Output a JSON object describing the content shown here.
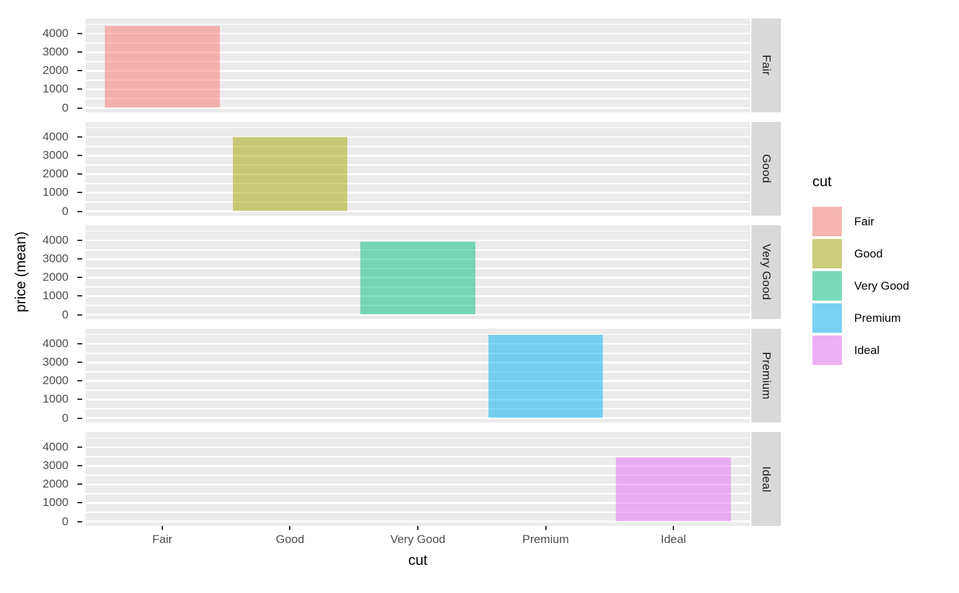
{
  "chart_data": {
    "type": "bar",
    "title": "",
    "xlabel": "cut",
    "ylabel": "price (mean)",
    "facet_variable": "cut",
    "facet_strip_position": "right",
    "grid": true,
    "legend_position": "right",
    "categories": [
      "Fair",
      "Good",
      "Very Good",
      "Premium",
      "Ideal"
    ],
    "facets": [
      {
        "strip_label": "Fair",
        "category": "Fair",
        "value": 4400
      },
      {
        "strip_label": "Good",
        "category": "Good",
        "value": 4000
      },
      {
        "strip_label": "Very Good",
        "category": "Very Good",
        "value": 3950
      },
      {
        "strip_label": "Premium",
        "category": "Premium",
        "value": 4500
      },
      {
        "strip_label": "Ideal",
        "category": "Ideal",
        "value": 3450
      }
    ],
    "y_ticks": [
      0,
      1000,
      2000,
      3000,
      4000
    ],
    "y_minor_ticks": [
      500,
      1500,
      2500,
      3500,
      4500
    ],
    "y_range": [
      -240,
      4820
    ],
    "x_range": [
      0.4,
      5.6
    ],
    "bar_width": 0.9,
    "fill_alpha": 0.5,
    "legend": {
      "title": "cut",
      "entries": [
        {
          "label": "Fair",
          "color": "#F8766D"
        },
        {
          "label": "Good",
          "color": "#A3A500"
        },
        {
          "label": "Very Good",
          "color": "#00BF7D"
        },
        {
          "label": "Premium",
          "color": "#00B0F6"
        },
        {
          "label": "Ideal",
          "color": "#E76BF3"
        }
      ]
    },
    "colors": {
      "panel_bg": "#EBEBEB",
      "grid_major": "#FFFFFF",
      "grid_minor": "#FFFFFF",
      "strip_bg": "#D9D9D9",
      "strip_text": "#1A1A1A",
      "tick_text": "#4D4D4D",
      "axis_title": "#000000",
      "tick_mark": "#333333",
      "legend_key_bg": "#F2F2F2",
      "background": "#FFFFFF"
    }
  }
}
